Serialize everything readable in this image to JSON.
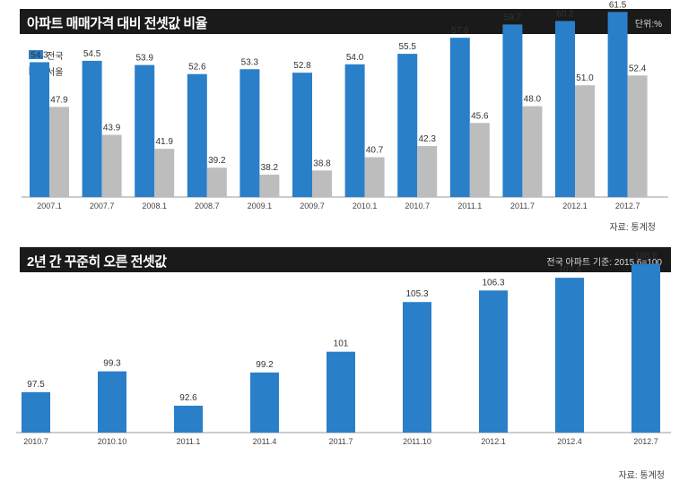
{
  "colors": {
    "blue": "#2a7fc9",
    "gray": "#bdbdbd",
    "title_bg": "#1a1a1a"
  },
  "chart1": {
    "title": "아파트 매매가격 대비 전셋값 비율",
    "unit": "단위:%",
    "source": "자료: 통계청",
    "legend": [
      "전국",
      "서울"
    ]
  },
  "chart2": {
    "title": "2년 간 꾸준히 오른 전셋값",
    "unit": "전국 아파트 기준: 2015.6=100",
    "source": "자료: 통계청"
  },
  "chart_data": [
    {
      "type": "bar",
      "title": "아파트 매매가격 대비 전셋값 비율",
      "categories": [
        "2007.1",
        "2007.7",
        "2008.1",
        "2008.7",
        "2009.1",
        "2009.7",
        "2010.1",
        "2010.7",
        "2011.1",
        "2011.7",
        "2012.1",
        "2012.7"
      ],
      "series": [
        {
          "name": "전국",
          "values": [
            54.3,
            54.5,
            53.9,
            52.6,
            53.3,
            52.8,
            54.0,
            55.5,
            57.8,
            59.7,
            60.2,
            61.5
          ]
        },
        {
          "name": "서울",
          "values": [
            47.9,
            43.9,
            41.9,
            39.2,
            38.2,
            38.8,
            40.7,
            42.3,
            45.6,
            48.0,
            51.0,
            52.4
          ]
        }
      ],
      "legend_position": "top-left",
      "grid": false
    },
    {
      "type": "bar",
      "title": "2년 간 꾸준히 오른 전셋값",
      "categories": [
        "2010.7",
        "2010.10",
        "2011.1",
        "2011.4",
        "2011.7",
        "2011.10",
        "2012.1",
        "2012.4",
        "2012.7"
      ],
      "values": [
        97.5,
        99.3,
        92.6,
        99.2,
        101,
        105.3,
        106.3,
        107.4,
        108.6
      ],
      "grid": false
    }
  ]
}
